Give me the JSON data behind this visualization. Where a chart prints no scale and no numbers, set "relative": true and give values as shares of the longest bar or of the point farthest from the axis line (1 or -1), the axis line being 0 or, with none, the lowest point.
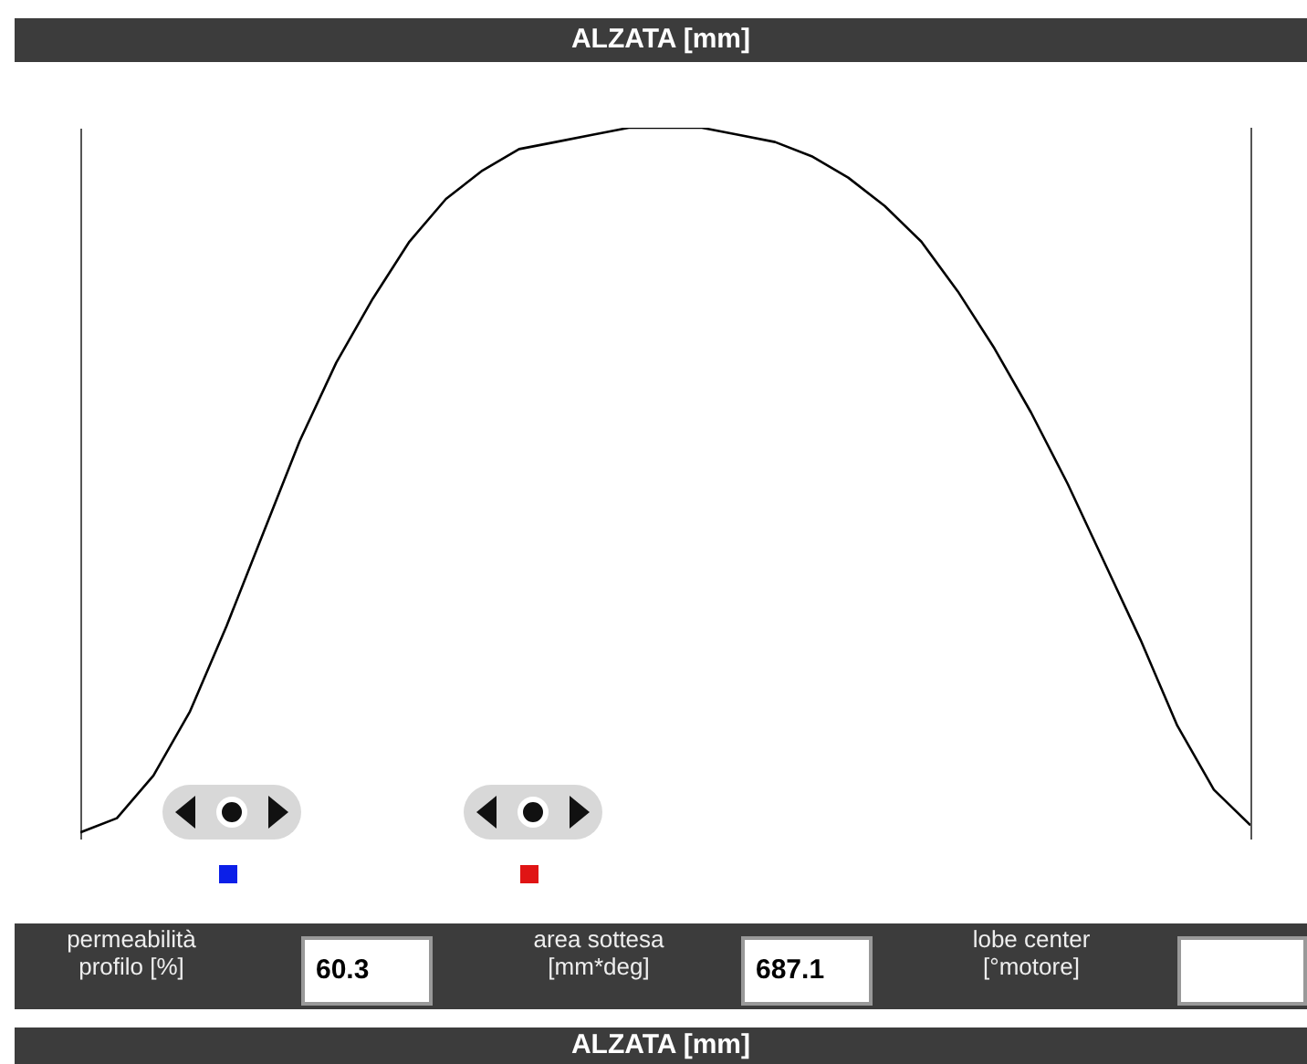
{
  "chart_data": {
    "type": "line",
    "title": "ALZATA [mm]",
    "relative": true,
    "categories": [
      null,
      null,
      null,
      null,
      null,
      null,
      null,
      null,
      null,
      null,
      null,
      null,
      null,
      null,
      null,
      null,
      null,
      null,
      null,
      null,
      null,
      null,
      null,
      null,
      null,
      null,
      null,
      null,
      null,
      null,
      null,
      null,
      null
    ],
    "series": [
      {
        "color": "#000000",
        "values": [
          0.01,
          0.03,
          0.09,
          0.18,
          0.3,
          0.43,
          0.56,
          0.67,
          0.76,
          0.84,
          0.9,
          0.94,
          0.97,
          0.98,
          0.99,
          1.0,
          1.0,
          1.0,
          0.99,
          0.98,
          0.96,
          0.93,
          0.89,
          0.84,
          0.77,
          0.69,
          0.6,
          0.5,
          0.39,
          0.28,
          0.16,
          0.07,
          0.02
        ]
      }
    ],
    "annotations": [
      "permeabilità\nprofilo [%]",
      "60.3",
      "area sottesa\n[mm*deg]",
      "687.1",
      "lobe center\n[°motore]",
      "ALZATA [mm]"
    ]
  }
}
